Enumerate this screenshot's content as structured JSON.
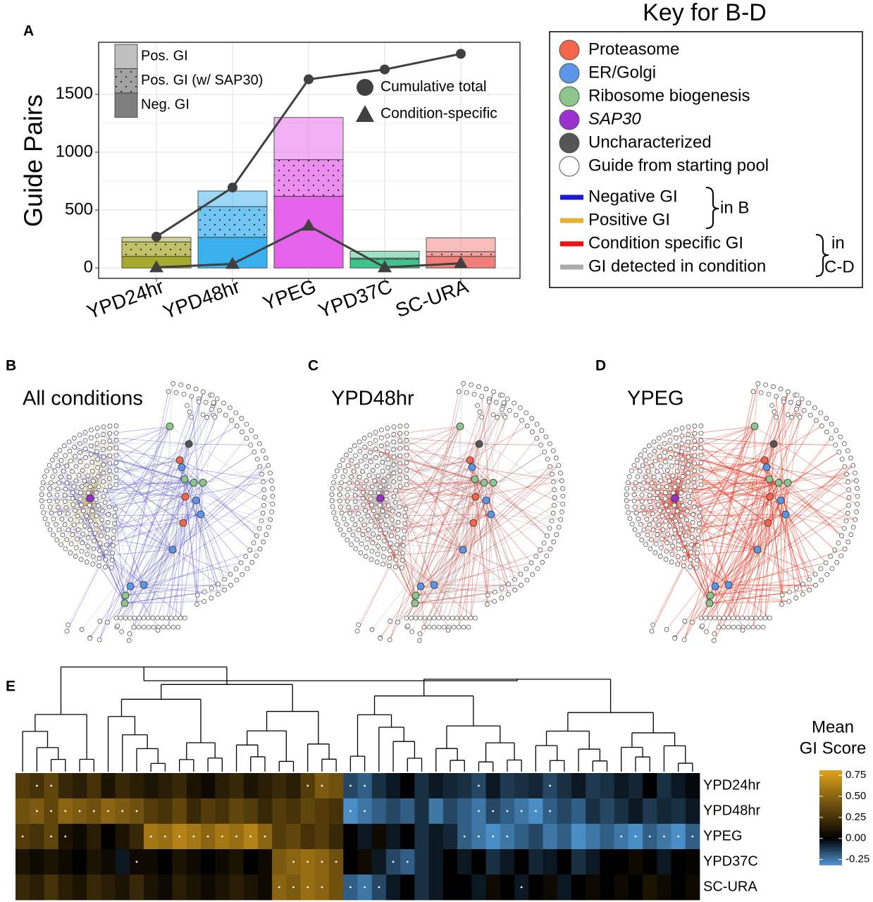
{
  "chart_data": [
    {
      "type": "bar",
      "panel": "A",
      "y_label": "Guide Pairs",
      "categories": [
        "YPD24hr",
        "YPD48hr",
        "YPEG",
        "YPD37C",
        "SC-URA"
      ],
      "category_colors": [
        "#a8aa2e",
        "#3ab0ef",
        "#e563ea",
        "#3fc48e",
        "#f27e7a"
      ],
      "series": [
        {
          "name": "Neg. GI",
          "color": "#7f7f7f",
          "opacity": 1,
          "values": [
            100,
            265,
            620,
            75,
            100
          ]
        },
        {
          "name": "Pos. GI (w/ SAP30)",
          "color": "#7f7f7f",
          "opacity": 0.72,
          "pattern": "dots",
          "values": [
            125,
            265,
            315,
            10,
            40
          ]
        },
        {
          "name": "Pos. GI",
          "color": "#7f7f7f",
          "opacity": 0.5,
          "values": [
            40,
            135,
            365,
            60,
            120
          ]
        }
      ],
      "lines": [
        {
          "name": "Cumulative total",
          "marker": "circle",
          "color": "#404040",
          "values": [
            270,
            695,
            1630,
            1715,
            1850
          ]
        },
        {
          "name": "Condition-specific",
          "marker": "triangle",
          "color": "#404040",
          "values": [
            5,
            35,
            365,
            5,
            40
          ]
        }
      ],
      "ylim": [
        -90,
        1950
      ],
      "yticks": [
        0,
        500,
        1000,
        1500
      ],
      "grid": true
    },
    {
      "type": "heatmap",
      "panel": "E",
      "rows": [
        "YPD24hr",
        "YPD48hr",
        "YPEG",
        "YPD37C",
        "SC-URA"
      ],
      "values": [
        [
          0.3,
          0.25,
          0.35,
          0.2,
          0.15,
          0.25,
          0.1,
          0.2,
          0.15,
          0.1,
          0.15,
          0.2,
          0.1,
          0.05,
          0.15,
          0.2,
          0.1,
          0.15,
          0.2,
          0.15,
          0.3,
          0.45,
          0.4,
          -0.15,
          -0.2,
          -0.1,
          -0.05,
          0,
          -0.1,
          -0.05,
          -0.08,
          -0.1,
          -0.15,
          -0.05,
          -0.12,
          -0.1,
          -0.08,
          -0.15,
          -0.1,
          -0.05,
          -0.12,
          -0.1,
          -0.05,
          -0.08,
          0,
          -0.1,
          -0.05,
          -0.02
        ],
        [
          0.4,
          0.45,
          0.35,
          0.5,
          0.45,
          0.4,
          0.5,
          0.45,
          0.4,
          0.3,
          0.25,
          0.35,
          0.2,
          0.3,
          0.25,
          0.35,
          0.3,
          0.2,
          0.3,
          0.25,
          0.35,
          0.3,
          0.25,
          -0.3,
          -0.25,
          -0.2,
          -0.15,
          -0.2,
          -0.1,
          -0.25,
          -0.15,
          -0.2,
          -0.25,
          -0.15,
          -0.2,
          -0.25,
          -0.3,
          -0.2,
          -0.15,
          -0.2,
          -0.1,
          -0.15,
          -0.1,
          -0.05,
          -0.12,
          -0.08,
          -0.1,
          -0.05
        ],
        [
          0.3,
          0.25,
          0.35,
          0.1,
          0.05,
          0.15,
          0,
          0.1,
          0.2,
          0.6,
          0.55,
          0.65,
          0.6,
          0.5,
          0.6,
          0.55,
          0.65,
          0.5,
          0.3,
          0.35,
          0.25,
          0.3,
          0.2,
          0,
          -0.05,
          0.05,
          -0.05,
          0,
          -0.1,
          -0.05,
          -0.08,
          -0.2,
          -0.25,
          -0.3,
          -0.25,
          -0.2,
          -0.15,
          -0.25,
          -0.2,
          -0.3,
          -0.25,
          -0.2,
          -0.25,
          -0.3,
          -0.2,
          -0.25,
          -0.3,
          -0.2
        ],
        [
          0.1,
          0.05,
          0.1,
          0.05,
          0,
          0.1,
          0.05,
          -0.05,
          0.05,
          0.05,
          0,
          0.1,
          0.05,
          0,
          0.05,
          0.1,
          0,
          0.05,
          0.45,
          0.5,
          0.55,
          0.5,
          0.4,
          0,
          0.05,
          -0.05,
          -0.15,
          -0.2,
          -0.1,
          -0.05,
          0,
          -0.05,
          0,
          -0.1,
          -0.05,
          0,
          -0.08,
          -0.05,
          0,
          -0.1,
          -0.05,
          0,
          0,
          0.05,
          0,
          -0.05,
          0,
          0.02
        ],
        [
          0.2,
          0.15,
          0.25,
          0.15,
          0.1,
          0.2,
          0.15,
          0.1,
          0.2,
          0.1,
          0.05,
          0.15,
          0.1,
          0.05,
          0.1,
          0.15,
          0.1,
          0.05,
          0.5,
          0.45,
          0.55,
          0.5,
          0.4,
          -0.2,
          -0.25,
          -0.15,
          -0.05,
          0,
          -0.1,
          -0.05,
          0,
          0,
          -0.05,
          0.05,
          0,
          -0.05,
          0,
          0.05,
          -0.05,
          0,
          0.05,
          0,
          0.05,
          0,
          0.1,
          0.05,
          0,
          0.05
        ]
      ],
      "marked": [
        [
          1,
          2,
          20,
          21,
          23,
          24,
          32,
          37
        ],
        [
          1,
          2,
          3,
          4,
          5,
          6,
          7,
          8,
          23,
          24,
          32,
          33,
          34,
          35,
          36,
          37
        ],
        [
          0,
          2,
          3,
          9,
          10,
          11,
          12,
          13,
          14,
          15,
          16,
          17,
          31,
          32,
          33,
          34,
          42,
          43,
          44,
          45,
          46,
          47
        ],
        [
          8,
          19,
          20,
          21,
          22,
          26,
          27
        ],
        [
          18,
          19,
          20,
          21,
          23,
          24,
          25,
          35
        ]
      ],
      "legend_title": [
        "Mean",
        "GI Score"
      ],
      "colors": [
        "#4f97d4",
        "#000000",
        "#e0a21c"
      ],
      "clim": [
        -0.32,
        0.81
      ],
      "cticks": [
        0.75,
        {
          "value": 0.5,
          "label": "0.50"
        },
        0.25,
        {
          "value": 0,
          "label": "0.00"
        },
        -0.25
      ]
    }
  ],
  "key": {
    "title": "Key for B-D",
    "items": [
      {
        "label": "Proteasome",
        "color": "#f4654a"
      },
      {
        "label": "ER/Golgi",
        "color": "#5b96e8"
      },
      {
        "label": "Ribosome biogenesis",
        "color": "#8cc68c"
      },
      {
        "label": "SAP30",
        "color": "#9b30d0",
        "italic": true
      },
      {
        "label": "Uncharacterized",
        "color": "#555555"
      },
      {
        "label": "Guide from starting pool",
        "color": "#ffffff"
      }
    ],
    "edges_b": [
      {
        "label": "Negative GI",
        "color": "#1a1ad0"
      },
      {
        "label": "Positive GI",
        "color": "#e8b030"
      }
    ],
    "brace_b": "in B",
    "edges_cd": [
      {
        "label": "Condition specific GI",
        "color": "#ee1111"
      },
      {
        "label": "GI detected in condition",
        "color": "#aaaaaa"
      }
    ],
    "brace_cd": [
      "in",
      "C-D"
    ]
  },
  "networks": [
    {
      "letter": "B",
      "title": "All conditions"
    },
    {
      "letter": "C",
      "title": "YPD48hr"
    },
    {
      "letter": "D",
      "title": "YPEG"
    }
  ]
}
